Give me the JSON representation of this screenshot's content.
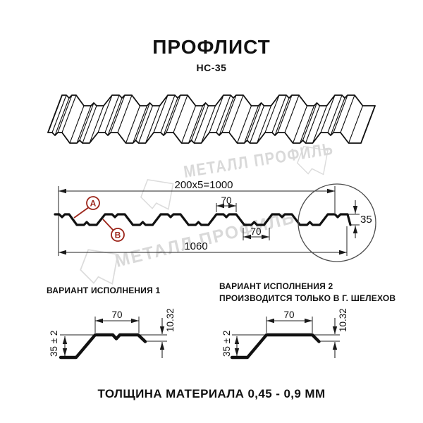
{
  "title": "ПРОФЛИСТ",
  "subtitle": "НС-35",
  "watermark": {
    "text": "МЕТАЛЛ ПРОФИЛЬ"
  },
  "cross_section": {
    "dim_pitch_total": "200x5=1000",
    "dim_top_flange": "70",
    "dim_bottom_flange": "70",
    "dim_full_width": "1060",
    "dim_height": "35",
    "marker_a": "А",
    "marker_b": "В"
  },
  "variants": {
    "variant1": {
      "label": "ВАРИАНТ ИСПОЛНЕНИЯ 1",
      "dim_top": "70",
      "dim_lip": "10.32",
      "dim_height": "35 ± 2"
    },
    "variant2": {
      "label_line1": "ВАРИАНТ ИСПОЛНЕНИЯ 2",
      "label_line2": "ПРОИЗВОДИТСЯ ТОЛЬКО В Г. ШЕЛЕХОВ",
      "dim_top": "70",
      "dim_lip": "10.32",
      "dim_height": "35 ± 2"
    }
  },
  "footer": "ТОЛЩИНА МАТЕРИАЛА 0,45 - 0,9 ММ",
  "colors": {
    "marker": "#9b2318",
    "line": "#111111",
    "watermark": "#d9d9d9"
  }
}
